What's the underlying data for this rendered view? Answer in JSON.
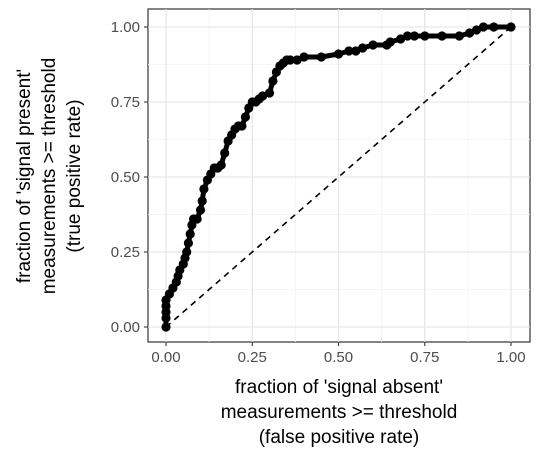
{
  "chart_data": {
    "type": "line",
    "title": "",
    "xlabel_lines": [
      "fraction of 'signal absent'",
      "measurements >= threshold",
      "(false positive rate)"
    ],
    "ylabel_lines": [
      "fraction of 'signal present'",
      "measurements >= threshold",
      "(true positive rate)"
    ],
    "xlim": [
      0,
      1
    ],
    "ylim": [
      0,
      1
    ],
    "x_ticks": [
      "0.00",
      "0.25",
      "0.50",
      "0.75",
      "1.00"
    ],
    "y_ticks": [
      "0.00",
      "0.25",
      "0.50",
      "0.75",
      "1.00"
    ],
    "grid": true,
    "legend": "none",
    "series": [
      {
        "style": "solid",
        "color": "#000000",
        "x": [
          0.0,
          0.0,
          0.0,
          0.0,
          0.0,
          0.01,
          0.02,
          0.03,
          0.035,
          0.04,
          0.05,
          0.055,
          0.06,
          0.065,
          0.07,
          0.075,
          0.08,
          0.09,
          0.1,
          0.105,
          0.11,
          0.12,
          0.13,
          0.14,
          0.15,
          0.16,
          0.17,
          0.18,
          0.19,
          0.2,
          0.21,
          0.22,
          0.23,
          0.24,
          0.25,
          0.26,
          0.27,
          0.28,
          0.3,
          0.31,
          0.32,
          0.33,
          0.34,
          0.35,
          0.36,
          0.38,
          0.4,
          0.45,
          0.5,
          0.53,
          0.55,
          0.57,
          0.6,
          0.64,
          0.65,
          0.68,
          0.7,
          0.72,
          0.75,
          0.8,
          0.85,
          0.88,
          0.9,
          0.92,
          0.95,
          1.0
        ],
        "y": [
          0.0,
          0.03,
          0.05,
          0.07,
          0.09,
          0.11,
          0.13,
          0.15,
          0.17,
          0.19,
          0.21,
          0.23,
          0.25,
          0.28,
          0.31,
          0.34,
          0.36,
          0.36,
          0.39,
          0.42,
          0.46,
          0.49,
          0.51,
          0.53,
          0.53,
          0.54,
          0.58,
          0.62,
          0.64,
          0.66,
          0.67,
          0.67,
          0.7,
          0.73,
          0.75,
          0.75,
          0.76,
          0.77,
          0.78,
          0.82,
          0.85,
          0.87,
          0.88,
          0.89,
          0.89,
          0.89,
          0.9,
          0.9,
          0.91,
          0.92,
          0.92,
          0.93,
          0.94,
          0.94,
          0.95,
          0.96,
          0.97,
          0.97,
          0.97,
          0.97,
          0.97,
          0.98,
          0.99,
          1.0,
          1.0,
          1.0
        ]
      },
      {
        "style": "dashed",
        "color": "#000000",
        "x": [
          0,
          1
        ],
        "y": [
          0,
          1
        ]
      }
    ]
  }
}
